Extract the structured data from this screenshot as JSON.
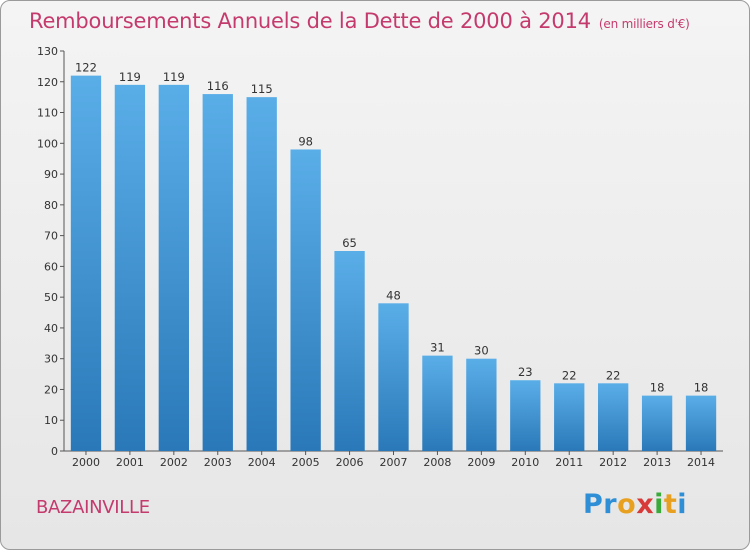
{
  "chart_data": {
    "type": "bar",
    "title": "Remboursements Annuels de la Dette de 2000 à 2014",
    "unit_label": "(en milliers d'€)",
    "categories": [
      "2000",
      "2001",
      "2002",
      "2003",
      "2004",
      "2005",
      "2006",
      "2007",
      "2008",
      "2009",
      "2010",
      "2011",
      "2012",
      "2013",
      "2014"
    ],
    "values": [
      122,
      119,
      119,
      116,
      115,
      98,
      65,
      48,
      31,
      30,
      23,
      22,
      22,
      18,
      18
    ],
    "ylim": [
      0,
      130
    ],
    "yticks": [
      0,
      10,
      20,
      30,
      40,
      50,
      60,
      70,
      80,
      90,
      100,
      110,
      120,
      130
    ],
    "grid": false,
    "bar_color_top": "#5aaee8",
    "bar_color_bottom": "#2a78b8"
  },
  "footer": {
    "commune": "BAZAINVILLE",
    "logo_letters": [
      "P",
      "r",
      "o",
      "x",
      "i",
      "t",
      "i"
    ],
    "logo_colors": [
      "#2f8fd6",
      "#2f8fd6",
      "#e8a020",
      "#d83a3a",
      "#3aaa3a",
      "#e8a020",
      "#2f8fd6"
    ]
  }
}
